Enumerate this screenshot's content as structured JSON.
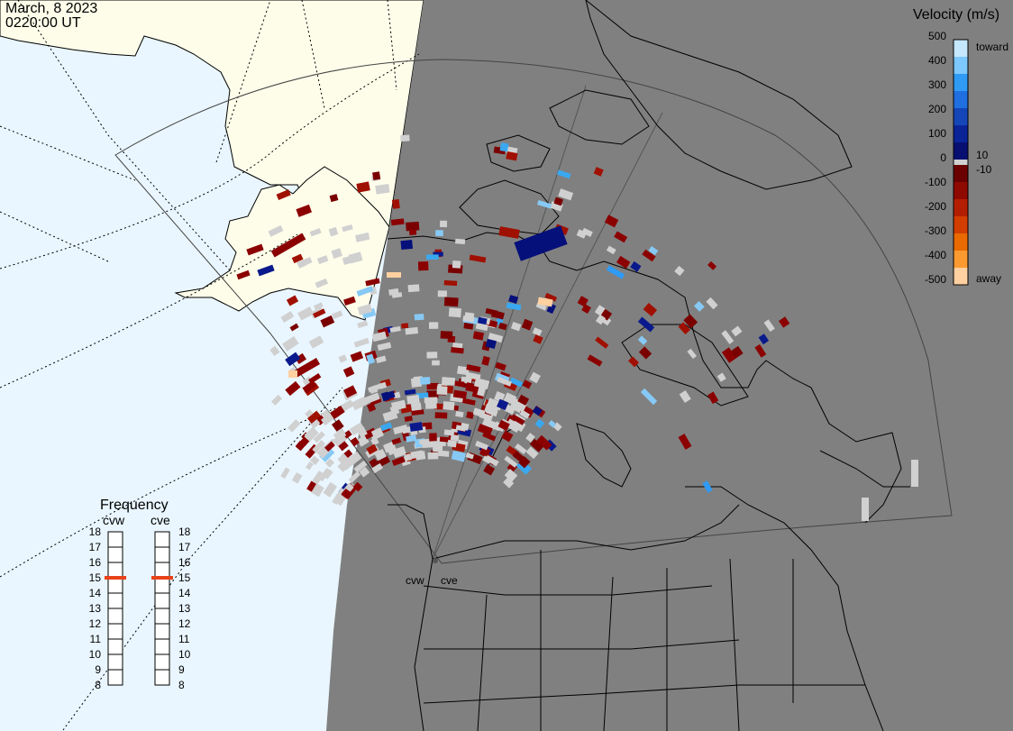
{
  "header": {
    "date": "March, 8 2023",
    "time": "0220:00 UT"
  },
  "colorbar": {
    "title": "Velocity (m/s)",
    "ticks": [
      "500",
      "400",
      "300",
      "200",
      "100",
      "0",
      "-100",
      "-200",
      "-300",
      "-400",
      "-500"
    ],
    "labels": {
      "toward": "toward",
      "away": "away",
      "pos_small": "10",
      "neg_small": "-10"
    },
    "toward_colors": [
      "#c6e8ff",
      "#7cc8ff",
      "#2f9bf5",
      "#1f6fe0",
      "#1446b8",
      "#0a2498",
      "#071070"
    ],
    "away_colors": [
      "#6a0000",
      "#8e0a00",
      "#b41e00",
      "#d23e00",
      "#ea6a00",
      "#fb9a30",
      "#ffd0a0"
    ]
  },
  "frequency": {
    "title": "Frequency",
    "radars": [
      "cvw",
      "cve"
    ],
    "scale": [
      "18",
      "17",
      "16",
      "15",
      "14",
      "13",
      "12",
      "11",
      "10",
      "9",
      "8"
    ],
    "cvw_value": 15,
    "cve_value": 15,
    "marker_color": "#e8421a"
  },
  "radar_sites": {
    "west": "cvw",
    "east": "cve"
  },
  "colors": {
    "ocean": "#e9f6ff",
    "land_day": "#fdfdea",
    "night": "#808080",
    "ground_scatter": "#d0d0d0"
  }
}
